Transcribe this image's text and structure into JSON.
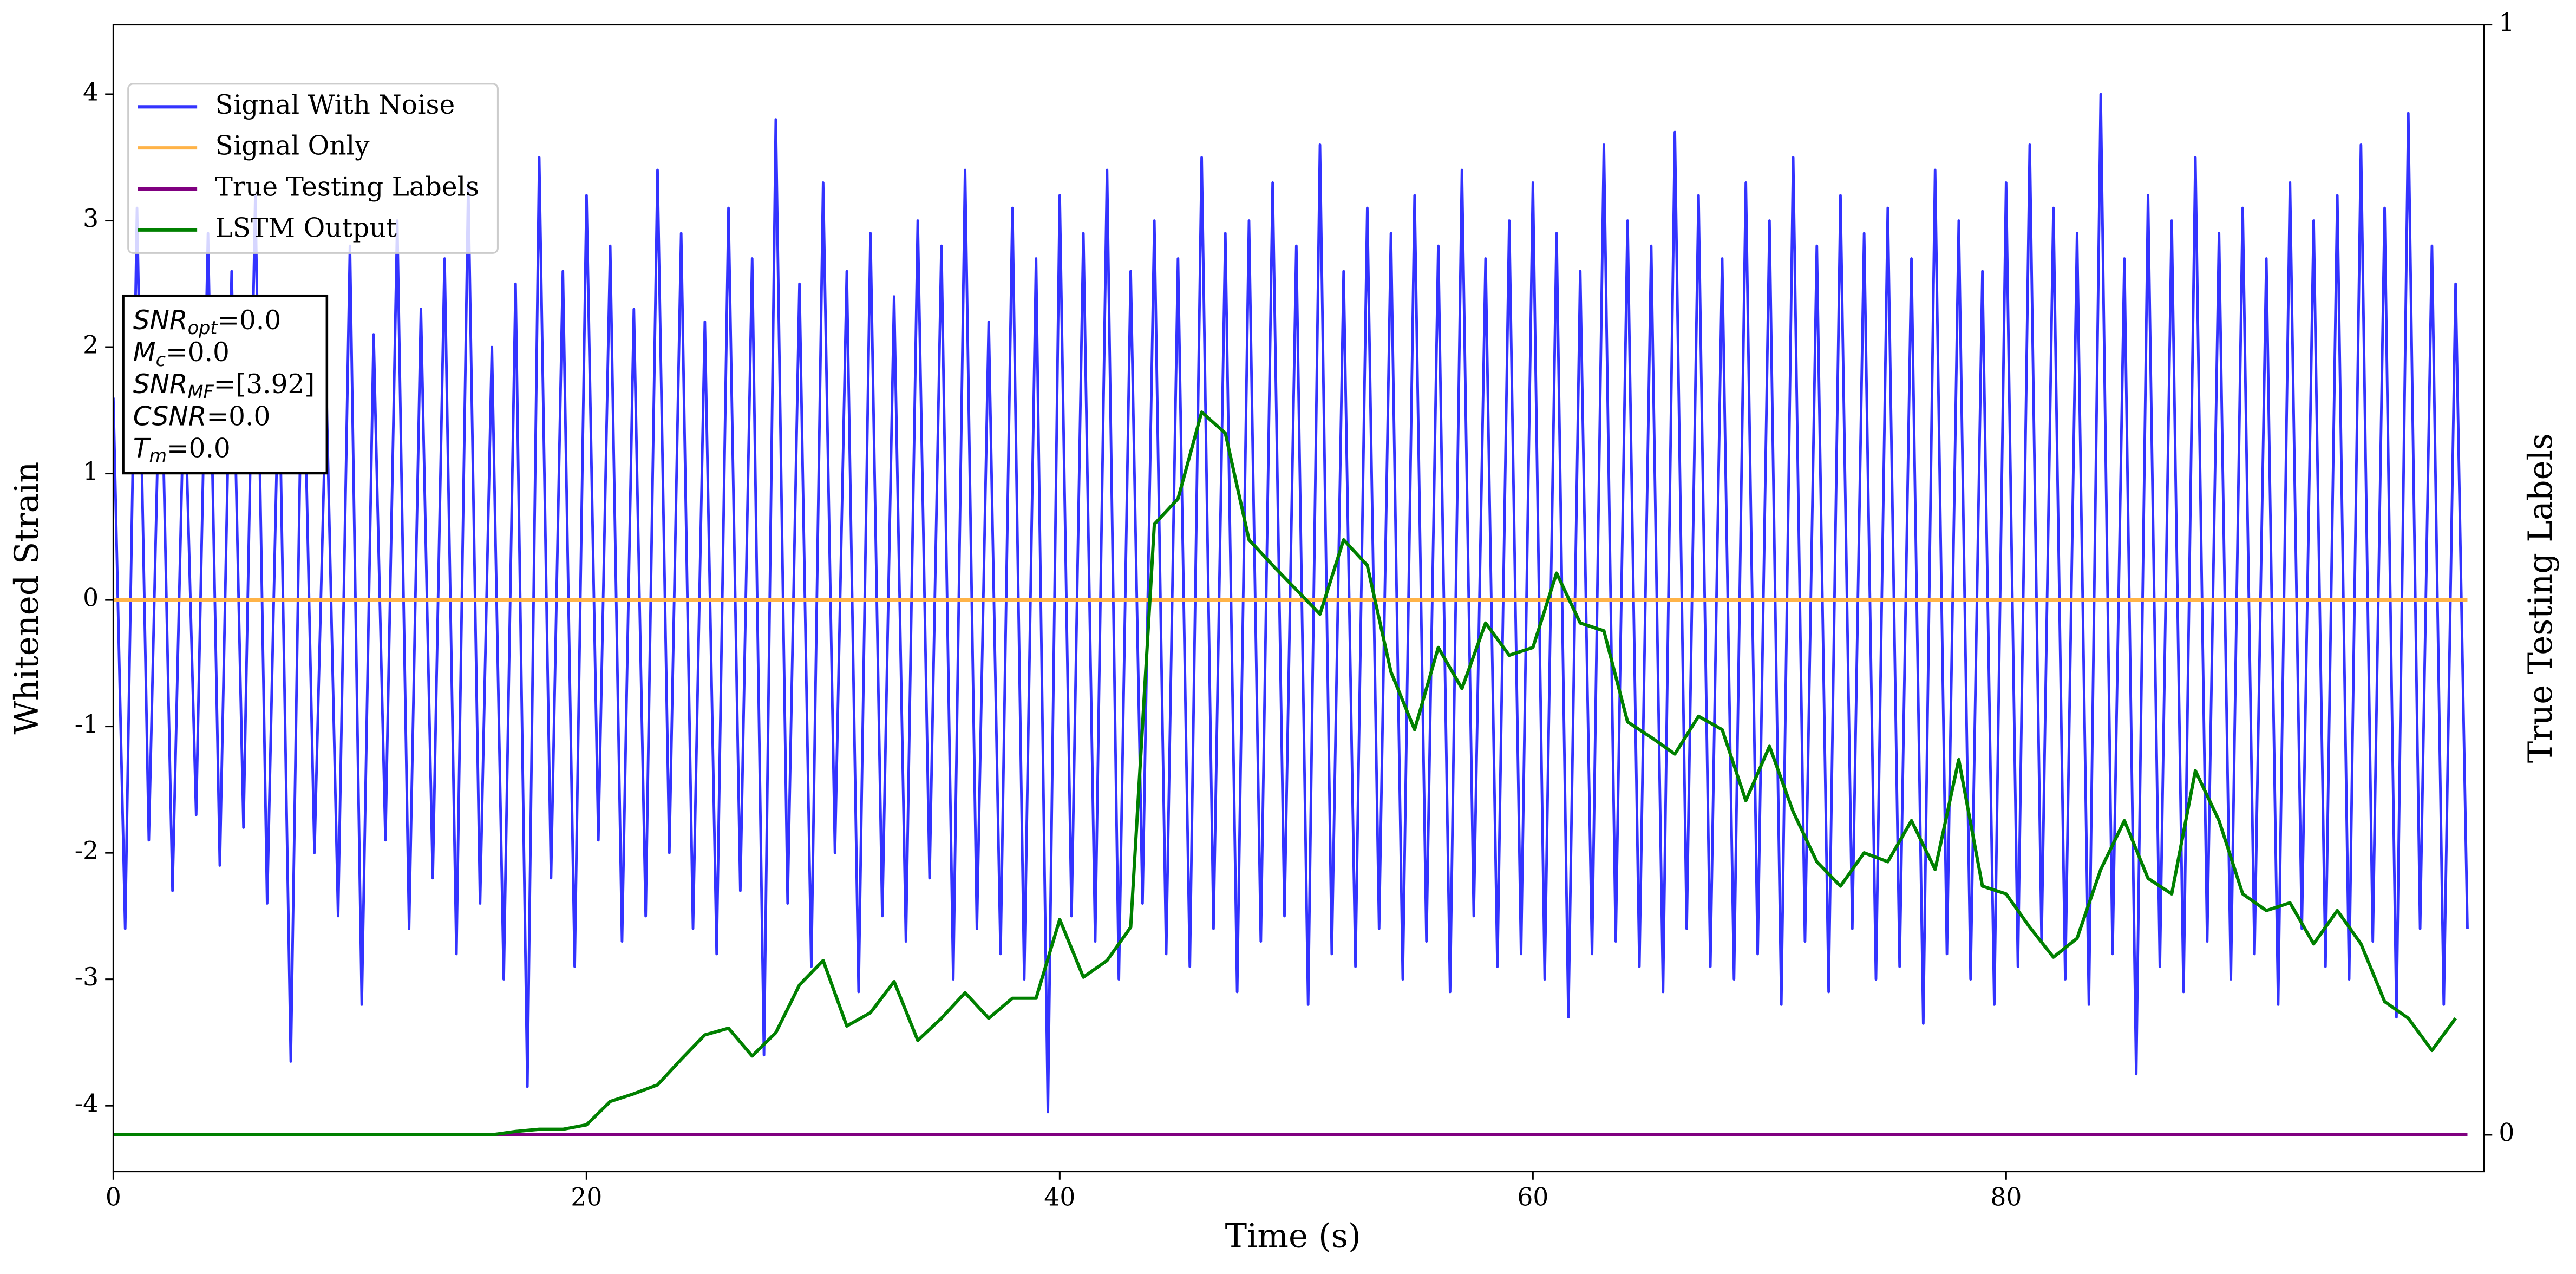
{
  "chart_data": {
    "type": "line",
    "xlabel": "Time (s)",
    "ylabel": "Whitened Strain",
    "y2label": "True Testing Labels",
    "xlim": [
      0,
      100.2
    ],
    "xticks": [
      0,
      20,
      40,
      60,
      80
    ],
    "ylim": [
      -4.52,
      4.55
    ],
    "yticks": [
      -4,
      -3,
      -2,
      -1,
      0,
      1,
      2,
      3,
      4
    ],
    "y2lim": [
      -0.033,
      1
    ],
    "y2ticks": [
      0,
      1
    ],
    "legend": "upper left",
    "annotations": [
      {
        "text": "SNR",
        "sub": "opt",
        "value": "=0.0"
      },
      {
        "text": "M",
        "sub": "c",
        "value": "=0.0"
      },
      {
        "text": "SNR",
        "sub": "MF",
        "value": "=[3.92]"
      },
      {
        "text": "CSNR",
        "value": "=0.0"
      },
      {
        "text": "T",
        "sub": "m",
        "value": "=0.0"
      }
    ],
    "series": [
      {
        "name": "Signal With Noise",
        "color": "#3333ff",
        "x": [
          0,
          0.5,
          1,
          1.5,
          2,
          2.5,
          3,
          3.5,
          4,
          4.5,
          5,
          5.5,
          6,
          6.5,
          7,
          7.5,
          8,
          8.5,
          9,
          9.5,
          10,
          10.5,
          11,
          11.5,
          12,
          12.5,
          13,
          13.5,
          14,
          14.5,
          15,
          15.5,
          16,
          16.5,
          17,
          17.5,
          18,
          18.5,
          19,
          19.5,
          20,
          20.5,
          21,
          21.5,
          22,
          22.5,
          23,
          23.5,
          24,
          24.5,
          25,
          25.5,
          26,
          26.5,
          27,
          27.5,
          28,
          28.5,
          29,
          29.5,
          30,
          30.5,
          31,
          31.5,
          32,
          32.5,
          33,
          33.5,
          34,
          34.5,
          35,
          35.5,
          36,
          36.5,
          37,
          37.5,
          38,
          38.5,
          39,
          39.5,
          40,
          40.5,
          41,
          41.5,
          42,
          42.5,
          43,
          43.5,
          44,
          44.5,
          45,
          45.5,
          46,
          46.5,
          47,
          47.5,
          48,
          48.5,
          49,
          49.5,
          50,
          50.5,
          51,
          51.5,
          52,
          52.5,
          53,
          53.5,
          54,
          54.5,
          55,
          55.5,
          56,
          56.5,
          57,
          57.5,
          58,
          58.5,
          59,
          59.5,
          60,
          60.5,
          61,
          61.5,
          62,
          62.5,
          63,
          63.5,
          64,
          64.5,
          65,
          65.5,
          66,
          66.5,
          67,
          67.5,
          68,
          68.5,
          69,
          69.5,
          70,
          70.5,
          71,
          71.5,
          72,
          72.5,
          73,
          73.5,
          74,
          74.5,
          75,
          75.5,
          76,
          76.5,
          77,
          77.5,
          78,
          78.5,
          79,
          79.5,
          80,
          80.5,
          81,
          81.5,
          82,
          82.5,
          83,
          83.5,
          84,
          84.5,
          85,
          85.5,
          86,
          86.5,
          87,
          87.5,
          88,
          88.5,
          89,
          89.5,
          90,
          90.5,
          91,
          91.5,
          92,
          92.5,
          93,
          93.5,
          94,
          94.5,
          95,
          95.5,
          96,
          96.5,
          97,
          97.5,
          98,
          98.5,
          99,
          99.5
        ],
        "values": [
          1.6,
          -2.6,
          3.1,
          -1.9,
          2.2,
          -2.3,
          1.8,
          -1.7,
          2.9,
          -2.1,
          2.6,
          -1.8,
          3.2,
          -2.4,
          1.9,
          -3.65,
          2.4,
          -2.0,
          1.7,
          -2.5,
          2.8,
          -3.2,
          2.1,
          -1.9,
          3.0,
          -2.6,
          2.3,
          -2.2,
          2.7,
          -2.8,
          3.3,
          -2.4,
          2.0,
          -3.0,
          2.5,
          -3.85,
          3.5,
          -2.2,
          2.6,
          -2.9,
          3.2,
          -1.9,
          2.8,
          -2.7,
          2.3,
          -2.5,
          3.4,
          -2.0,
          2.9,
          -2.6,
          2.2,
          -2.8,
          3.1,
          -2.3,
          2.7,
          -3.6,
          3.8,
          -2.4,
          2.5,
          -2.9,
          3.3,
          -2.0,
          2.6,
          -3.1,
          2.9,
          -2.5,
          2.4,
          -2.7,
          3.0,
          -2.2,
          2.8,
          -3.0,
          3.4,
          -2.6,
          2.2,
          -2.8,
          3.1,
          -3.0,
          2.7,
          -4.05,
          3.2,
          -2.5,
          2.9,
          -2.7,
          3.4,
          -3.0,
          2.6,
          -2.4,
          3.0,
          -2.8,
          2.7,
          -2.9,
          3.5,
          -2.6,
          2.9,
          -3.1,
          3.0,
          -2.7,
          3.3,
          -2.5,
          2.8,
          -3.2,
          3.6,
          -2.8,
          2.6,
          -2.9,
          3.1,
          -2.6,
          2.9,
          -3.0,
          3.2,
          -2.7,
          2.8,
          -3.1,
          3.4,
          -2.5,
          2.7,
          -2.9,
          3.0,
          -2.8,
          3.3,
          -3.0,
          2.9,
          -3.3,
          2.6,
          -2.8,
          3.6,
          -2.7,
          3.0,
          -2.9,
          2.8,
          -3.1,
          3.7,
          -2.6,
          3.2,
          -2.9,
          2.7,
          -3.0,
          3.3,
          -2.8,
          3.0,
          -3.2,
          3.5,
          -2.7,
          2.8,
          -3.1,
          3.2,
          -2.6,
          2.9,
          -3.0,
          3.1,
          -2.9,
          2.7,
          -3.35,
          3.4,
          -2.8,
          3.0,
          -3.0,
          2.6,
          -3.2,
          3.3,
          -2.9,
          3.6,
          -2.7,
          3.1,
          -3.0,
          2.9,
          -3.2,
          4.0,
          -2.8,
          2.7,
          -3.75,
          3.2,
          -2.9,
          3.0,
          -3.1,
          3.5,
          -2.7,
          2.9,
          -3.0,
          3.1,
          -2.8,
          2.7,
          -3.2,
          3.3,
          -2.6,
          3.0,
          -2.9,
          3.2,
          -3.0,
          3.6,
          -2.7,
          3.1,
          -3.3,
          3.85,
          -2.6,
          2.8,
          -3.2,
          2.5,
          -2.6
        ]
      },
      {
        "name": "Signal Only",
        "color": "#ffb347",
        "x": [
          0,
          99.5
        ],
        "values": [
          0,
          0
        ]
      },
      {
        "name": "True Testing Labels",
        "color": "#800080",
        "axis": "y2",
        "x": [
          0,
          99.5
        ],
        "values": [
          0,
          0
        ]
      },
      {
        "name": "LSTM Output",
        "color": "#008000",
        "axis": "y2",
        "x": [
          0,
          1,
          2,
          3,
          4,
          5,
          6,
          7,
          8,
          9,
          10,
          11,
          12,
          13,
          14,
          15,
          16,
          17,
          18,
          19,
          20,
          21,
          22,
          23,
          24,
          25,
          26,
          27,
          28,
          29,
          30,
          31,
          32,
          33,
          34,
          35,
          36,
          37,
          38,
          39,
          40,
          41,
          42,
          43,
          44,
          45,
          46,
          47,
          48,
          49,
          50,
          51,
          52,
          53,
          54,
          55,
          56,
          57,
          58,
          59,
          60,
          61,
          62,
          63,
          64,
          65,
          66,
          67,
          68,
          69,
          70,
          71,
          72,
          73,
          74,
          75,
          76,
          77,
          78,
          79,
          80,
          81,
          82,
          83,
          84,
          85,
          86,
          87,
          88,
          89,
          90,
          91,
          92,
          93,
          94,
          95,
          96,
          97,
          98,
          99
        ],
        "values": [
          0,
          0,
          0,
          0,
          0,
          0,
          0,
          0,
          0,
          0,
          0,
          0,
          0,
          0,
          0,
          0,
          0,
          0.003,
          0.005,
          0.005,
          0.009,
          0.03,
          0.037,
          0.045,
          0.068,
          0.09,
          0.096,
          0.071,
          0.092,
          0.135,
          0.157,
          0.098,
          0.11,
          0.138,
          0.085,
          0.105,
          0.128,
          0.105,
          0.123,
          0.123,
          0.194,
          0.142,
          0.157,
          0.187,
          0.55,
          0.573,
          0.651,
          0.632,
          0.536,
          0.513,
          0.491,
          0.469,
          0.536,
          0.513,
          0.417,
          0.365,
          0.439,
          0.402,
          0.461,
          0.432,
          0.439,
          0.506,
          0.461,
          0.454,
          0.372,
          0.358,
          0.343,
          0.377,
          0.365,
          0.301,
          0.35,
          0.291,
          0.246,
          0.224,
          0.254,
          0.246,
          0.283,
          0.239,
          0.338,
          0.224,
          0.217,
          0.187,
          0.16,
          0.177,
          0.239,
          0.283,
          0.231,
          0.217,
          0.328,
          0.283,
          0.217,
          0.202,
          0.209,
          0.172,
          0.202,
          0.172,
          0.12,
          0.105,
          0.076,
          0.105
        ]
      }
    ]
  }
}
